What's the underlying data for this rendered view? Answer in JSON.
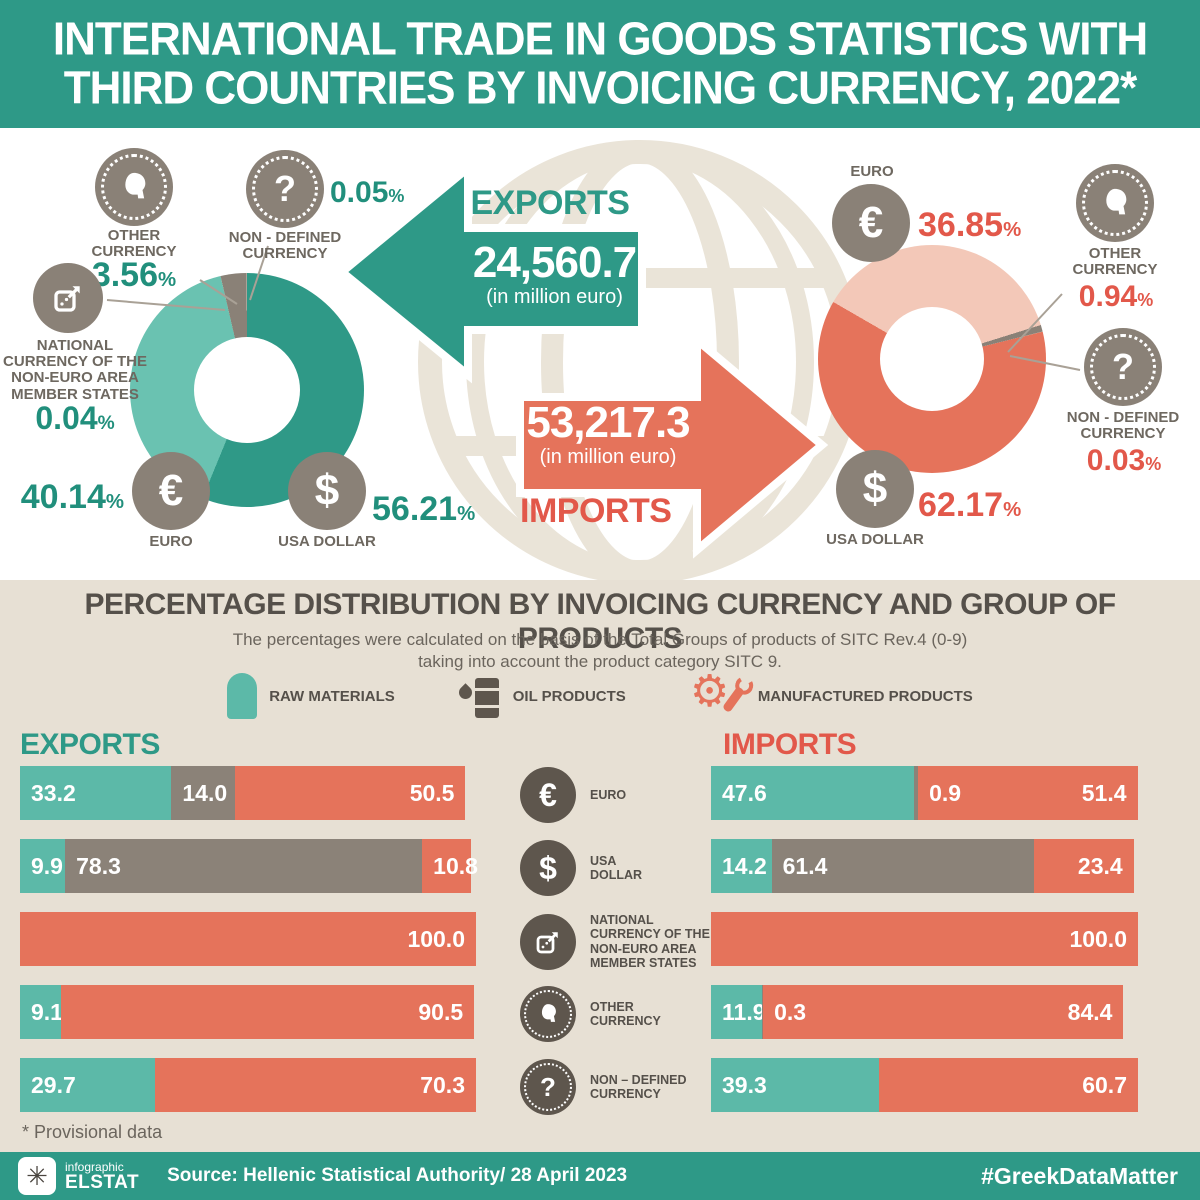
{
  "colors": {
    "green": "#2E9987",
    "teal_bar": "#5CB9A8",
    "teal_donut": "#6AC2B1",
    "salmon": "#E5735B",
    "salmon_text": "#E2584A",
    "pink": "#F3C8B8",
    "grey_coin": "#8A8177",
    "grey_bar": "#8B8278",
    "grey_dark_icon": "#5E564D",
    "beige": "#E7E0D4",
    "globe": "#EAE4D8",
    "text_dark": "#55504A",
    "green_value": "#218F7C"
  },
  "icons": {
    "euro": "€",
    "usd": "$",
    "national": "box-external-arrow",
    "other": "head-profile-coin",
    "nondef": "question-coin",
    "raw": "teal-silo",
    "oil": "barrel-with-drop",
    "man": "gear-and-wrench",
    "logo_star": "✳",
    "question_glyph": "?"
  },
  "header": {
    "title_line1": "INTERNATIONAL TRADE IN GOODS STATISTICS WITH",
    "title_line2": "THIRD COUNTRIES BY INVOICING CURRENCY, 2022*"
  },
  "top": {
    "exports": {
      "heading": "EXPORTS",
      "value": "24,560.7",
      "note": "(in million euro)",
      "euro": {
        "label": "EURO",
        "value": "40.14",
        "unit": "%"
      },
      "usd": {
        "label": "USA DOLLAR",
        "value": "56.21",
        "unit": "%"
      },
      "other": {
        "label": "OTHER CURRENCY",
        "value": "3.56",
        "unit": "%"
      },
      "nondef": {
        "label": "NON - DEFINED CURRENCY",
        "value": "0.05",
        "unit": "%"
      },
      "national": {
        "label": "NATIONAL CURRENCY OF THE NON-EURO AREA MEMBER STATES",
        "value": "0.04",
        "unit": "%"
      }
    },
    "imports": {
      "heading": "IMPORTS",
      "value": "53,217.3",
      "note": "(in million euro)",
      "euro": {
        "label": "EURO",
        "value": "36.85",
        "unit": "%"
      },
      "usd": {
        "label": "USA DOLLAR",
        "value": "62.17",
        "unit": "%"
      },
      "other": {
        "label": "OTHER CURRENCY",
        "value": "0.94",
        "unit": "%"
      },
      "nondef": {
        "label": "NON - DEFINED CURRENCY",
        "value": "0.03",
        "unit": "%"
      }
    }
  },
  "section": {
    "title": "PERCENTAGE DISTRIBUTION BY INVOICING CURRENCY AND GROUP OF PRODUCTS",
    "subtitle1": "The percentages were calculated on the basis of the Total Groups of products of SITC Rev.4 (0-9)",
    "subtitle2": "taking into account the product category SITC 9.",
    "legend": [
      {
        "label": "RAW MATERIALS"
      },
      {
        "label": "OIL PRODUCTS"
      },
      {
        "label": "MANUFACTURED PRODUCTS"
      }
    ],
    "exports_heading": "EXPORTS",
    "imports_heading": "IMPORTS",
    "currencies": [
      "EURO",
      "USA DOLLAR",
      "NATIONAL CURRENCY OF THE NON-EURO AREA MEMBER STATES",
      "OTHER CURRENCY",
      "NON – DEFINED CURRENCY"
    ],
    "footnote": "* Provisional data"
  },
  "footer": {
    "brand_top": "infographic",
    "brand": "ELSTAT",
    "source": "Source: Hellenic Statistical Authority/ 28 April 2023",
    "hashtag": "#GreekDataMatter"
  },
  "chart_data": [
    {
      "type": "pie",
      "name": "exports-by-invoicing-currency",
      "title": "EXPORTS 24,560.7 (in million euro)",
      "unit": "%",
      "start_deg": 0,
      "segments": [
        {
          "label": "USA DOLLAR",
          "value": 56.21,
          "color": "#2F9987"
        },
        {
          "label": "EURO",
          "value": 40.14,
          "color": "#6AC2B1"
        },
        {
          "label": "NATIONAL CURRENCY OF THE NON-EURO AREA MEMBER STATES",
          "value": 0.04,
          "color": "#B6AEA0"
        },
        {
          "label": "OTHER CURRENCY",
          "value": 3.56,
          "color": "#8A8177"
        },
        {
          "label": "NON - DEFINED CURRENCY",
          "value": 0.05,
          "color": "#CFC8BC"
        }
      ]
    },
    {
      "type": "pie",
      "name": "imports-by-invoicing-currency",
      "title": "IMPORTS 53,217.3 (in million euro)",
      "unit": "%",
      "start_deg": -60,
      "segments": [
        {
          "label": "EURO",
          "value": 36.85,
          "color": "#F3C8B8"
        },
        {
          "label": "OTHER CURRENCY",
          "value": 0.94,
          "color": "#8A8177"
        },
        {
          "label": "NON - DEFINED CURRENCY",
          "value": 0.03,
          "color": "#CFC8BC"
        },
        {
          "label": "USA DOLLAR",
          "value": 62.17,
          "color": "#E5735B"
        }
      ]
    },
    {
      "type": "bar",
      "name": "exports-percentage-distribution",
      "orientation": "horizontal-stacked",
      "unit": "%",
      "xlim": [
        0,
        100
      ],
      "groups": [
        "RAW MATERIALS",
        "OIL PRODUCTS",
        "MANUFACTURED PRODUCTS"
      ],
      "categories": [
        "EURO",
        "USA DOLLAR",
        "NATIONAL CURRENCY OF THE NON-EURO AREA MEMBER STATES",
        "OTHER CURRENCY",
        "NON – DEFINED CURRENCY"
      ],
      "rows": [
        {
          "segments": [
            {
              "group": "raw",
              "value": 33.2,
              "label": "33.2"
            },
            {
              "group": "oil",
              "value": 14.0,
              "label": "14.0"
            },
            {
              "group": "man",
              "value": 50.5,
              "label": "50.5"
            }
          ]
        },
        {
          "segments": [
            {
              "group": "raw",
              "value": 9.9,
              "label": "9.9"
            },
            {
              "group": "oil",
              "value": 78.3,
              "label": "78.3"
            },
            {
              "group": "man",
              "value": 10.8,
              "label": "10.8"
            }
          ]
        },
        {
          "segments": [
            {
              "group": "man",
              "value": 100.0,
              "label": "100.0"
            }
          ]
        },
        {
          "segments": [
            {
              "group": "raw",
              "value": 9.1,
              "label": "9.1"
            },
            {
              "group": "man",
              "value": 90.5,
              "label": "90.5"
            }
          ]
        },
        {
          "segments": [
            {
              "group": "raw",
              "value": 29.7,
              "label": "29.7"
            },
            {
              "group": "man",
              "value": 70.3,
              "label": "70.3"
            }
          ]
        }
      ]
    },
    {
      "type": "bar",
      "name": "imports-percentage-distribution",
      "orientation": "horizontal-stacked",
      "unit": "%",
      "xlim": [
        0,
        100
      ],
      "groups": [
        "RAW MATERIALS",
        "OIL PRODUCTS",
        "MANUFACTURED PRODUCTS"
      ],
      "categories": [
        "EURO",
        "USA DOLLAR",
        "NATIONAL CURRENCY OF THE NON-EURO AREA MEMBER STATES",
        "OTHER CURRENCY",
        "NON – DEFINED CURRENCY"
      ],
      "rows": [
        {
          "segments": [
            {
              "group": "raw",
              "value": 47.6,
              "label": "47.6"
            },
            {
              "group": "oil",
              "value": 0.9,
              "label": "0.9"
            },
            {
              "group": "man",
              "value": 51.4,
              "label": "51.4"
            }
          ]
        },
        {
          "segments": [
            {
              "group": "raw",
              "value": 14.2,
              "label": "14.2"
            },
            {
              "group": "oil",
              "value": 61.4,
              "label": "61.4"
            },
            {
              "group": "man",
              "value": 23.4,
              "label": "23.4"
            }
          ]
        },
        {
          "segments": [
            {
              "group": "man",
              "value": 100.0,
              "label": "100.0"
            }
          ]
        },
        {
          "segments": [
            {
              "group": "raw",
              "value": 11.9,
              "label": "11.9"
            },
            {
              "group": "oil",
              "value": 0.3,
              "label": "0.3"
            },
            {
              "group": "man",
              "value": 84.4,
              "label": "84.4"
            }
          ]
        },
        {
          "segments": [
            {
              "group": "raw",
              "value": 39.3,
              "label": "39.3"
            },
            {
              "group": "man",
              "value": 60.7,
              "label": "60.7"
            }
          ]
        }
      ]
    }
  ]
}
